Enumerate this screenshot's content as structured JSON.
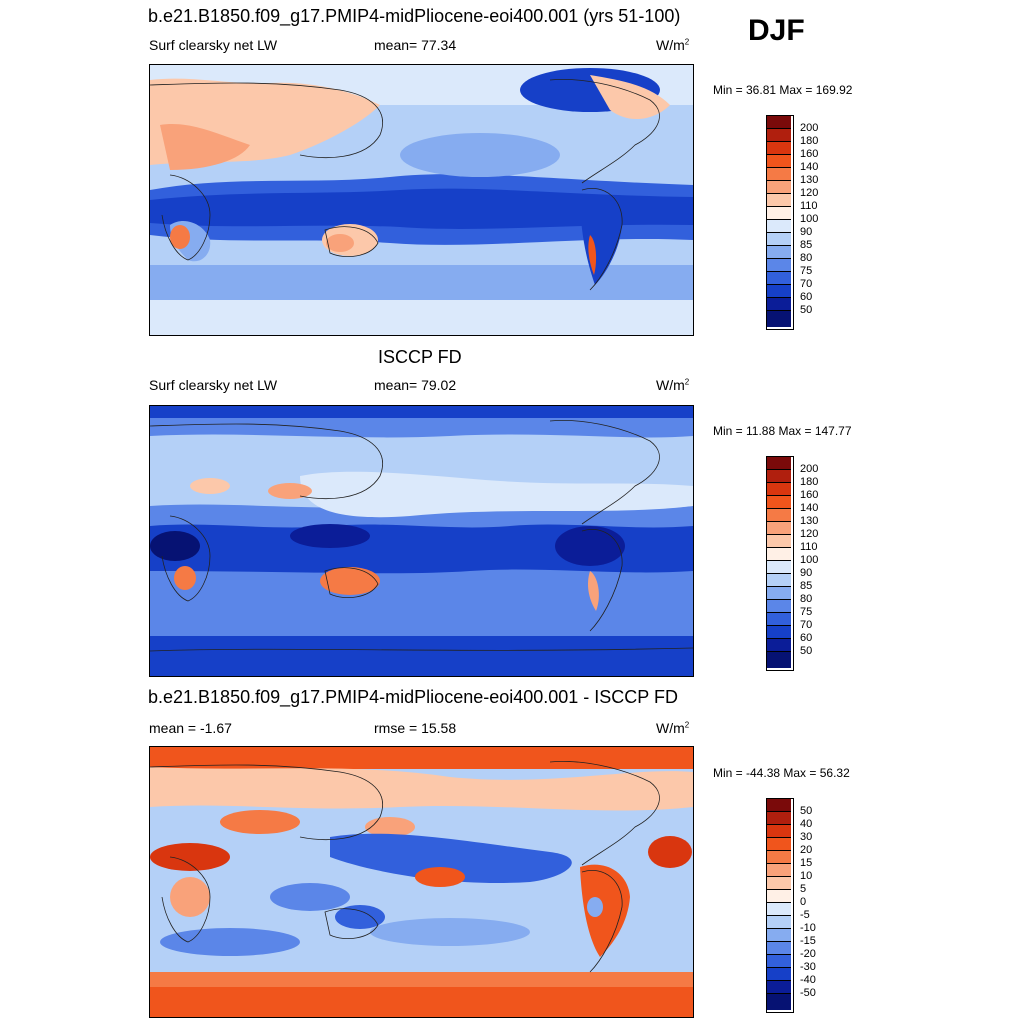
{
  "season": "DJF",
  "panels": [
    {
      "title": "b.e21.B1850.f09_g17.PMIP4-midPliocene-eoi400.001 (yrs 51-100)",
      "left_label": "Surf clearsky net LW",
      "mid_label": "mean=  77.34",
      "units": "W/m",
      "units_sup": "2",
      "minmax": "Min =  36.81 Max = 169.92",
      "colorbar_labels": [
        "200",
        "180",
        "160",
        "140",
        "130",
        "120",
        "110",
        "100",
        "90",
        "85",
        "80",
        "75",
        "70",
        "60",
        "50"
      ]
    },
    {
      "title": "ISCCP FD",
      "left_label": "Surf clearsky net LW",
      "mid_label": "mean=  79.02",
      "units": "W/m",
      "units_sup": "2",
      "minmax": "Min =  11.88 Max = 147.77",
      "colorbar_labels": [
        "200",
        "180",
        "160",
        "140",
        "130",
        "120",
        "110",
        "100",
        "90",
        "85",
        "80",
        "75",
        "70",
        "60",
        "50"
      ]
    },
    {
      "title": "b.e21.B1850.f09_g17.PMIP4-midPliocene-eoi400.001 - ISCCP FD",
      "left_label": "mean =  -1.67",
      "mid_label": "rmse =  15.58",
      "units": "W/m",
      "units_sup": "2",
      "minmax": "Min = -44.38 Max =  56.32",
      "colorbar_labels": [
        "50",
        "40",
        "30",
        "20",
        "15",
        "10",
        "5",
        "0",
        "-5",
        "-10",
        "-15",
        "-20",
        "-30",
        "-40",
        "-50"
      ]
    }
  ],
  "colors": {
    "scale": [
      "#7a0a0a",
      "#b01f0e",
      "#d9360f",
      "#f0551c",
      "#f57a45",
      "#f9a27a",
      "#fcc8aa",
      "#fff0e6",
      "#dbe9fb",
      "#b4d0f7",
      "#86acf0",
      "#5b86e8",
      "#3260dc",
      "#1640c8",
      "#0b1d98",
      "#061273"
    ]
  }
}
